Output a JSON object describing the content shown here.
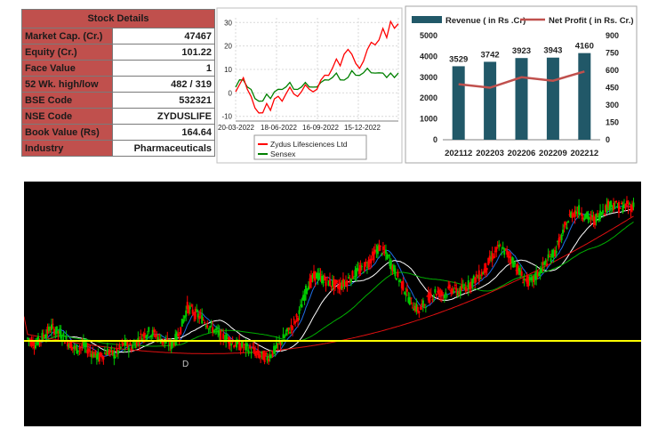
{
  "stock_details": {
    "title": "Stock Details",
    "rows": [
      {
        "label": "Market Cap. (Cr.)",
        "value": "47467"
      },
      {
        "label": "Equity (Cr.)",
        "value": "101.22"
      },
      {
        "label": "Face Value",
        "value": "1"
      },
      {
        "label": "52 Wk. high/low",
        "value": "482 / 319"
      },
      {
        "label": "BSE Code",
        "value": "532321"
      },
      {
        "label": "NSE Code",
        "value": "ZYDUSLIFE"
      },
      {
        "label": "Book Value (Rs)",
        "value": "164.64"
      },
      {
        "label": "Industry",
        "value": "Pharmaceuticals"
      }
    ]
  },
  "colors": {
    "header_red": "#c0504d",
    "bar": "#215868",
    "profit_line": "#c0504d",
    "zydus": "#ff0000",
    "sensex": "#008000"
  },
  "chart_data": [
    {
      "type": "line",
      "title": "",
      "x_ticks": [
        "20-03-2022",
        "18-06-2022",
        "16-09-2022",
        "15-12-2022"
      ],
      "y_ticks": [
        "-10",
        "0",
        "10",
        "20",
        "30"
      ],
      "ylim": [
        -12,
        32
      ],
      "grid": true,
      "legend_position": "bottom",
      "series": [
        {
          "name": "Zydus Lifesciences Ltd",
          "color": "#ff0000",
          "values": [
            0,
            4,
            6,
            2,
            -2,
            -6,
            -9,
            -8,
            -5,
            -7,
            -3,
            -1,
            -4,
            0,
            2,
            0,
            -2,
            1,
            3,
            2,
            0,
            2,
            5,
            8,
            7,
            11,
            14,
            12,
            16,
            19,
            16,
            13,
            10,
            14,
            18,
            22,
            20,
            23,
            27,
            24,
            30,
            28,
            29
          ]
        },
        {
          "name": "Sensex",
          "color": "#008000",
          "values": [
            2,
            6,
            5,
            3,
            1,
            -2,
            -4,
            -3,
            -1,
            -2,
            0,
            2,
            1,
            3,
            4,
            2,
            1,
            3,
            4,
            3,
            2,
            3,
            4,
            6,
            5,
            7,
            8,
            6,
            5,
            7,
            9,
            8,
            7,
            9,
            10,
            9,
            8,
            9,
            8,
            7,
            8,
            7,
            8
          ]
        }
      ]
    },
    {
      "type": "bar",
      "title": "",
      "categories": [
        "202112",
        "202203",
        "202206",
        "202209",
        "202212"
      ],
      "ylim": [
        0,
        5000
      ],
      "y_ticks": [
        "0",
        "1000",
        "2000",
        "3000",
        "4000",
        "5000"
      ],
      "y2lim": [
        0,
        900
      ],
      "y2_ticks": [
        "0",
        "150",
        "300",
        "450",
        "600",
        "750",
        "900"
      ],
      "legend_position": "top",
      "series": [
        {
          "name": "Revenue ( in Rs .Cr)",
          "type": "bar",
          "values": [
            3529,
            3742,
            3923,
            3943,
            4160
          ]
        },
        {
          "name": "Net Profit ( in Rs. Cr.)",
          "type": "line",
          "axis": "right",
          "values": [
            480,
            450,
            540,
            510,
            590
          ]
        }
      ],
      "data_labels": [
        "3529",
        "3742",
        "3923",
        "3943",
        "4160"
      ]
    },
    {
      "type": "line",
      "title": "",
      "background": "#000000",
      "support_line_color": "#ffff00",
      "series_colors": {
        "candles_up": "#00cc00",
        "candles_down": "#ff0000",
        "ma_short": "#1e6ee6",
        "ma_mid": "#ffffff",
        "ma_long": "#00b000",
        "ma_longest": "#e01010"
      },
      "annotations": [
        "D"
      ],
      "price_path": [
        52,
        48,
        54,
        60,
        56,
        50,
        44,
        47,
        42,
        38,
        43,
        40,
        48,
        46,
        52,
        57,
        55,
        50,
        47,
        56,
        75,
        70,
        66,
        60,
        55,
        52,
        48,
        46,
        44,
        40,
        38,
        44,
        52,
        60,
        70,
        90,
        98,
        95,
        92,
        90,
        94,
        99,
        103,
        110,
        118,
        112,
        100,
        90,
        78,
        72,
        80,
        86,
        84,
        88,
        86,
        90,
        95,
        100,
        110,
        118,
        114,
        106,
        96,
        92,
        100,
        108,
        115,
        128,
        142,
        145,
        140,
        138,
        145,
        150,
        147,
        148
      ]
    }
  ]
}
